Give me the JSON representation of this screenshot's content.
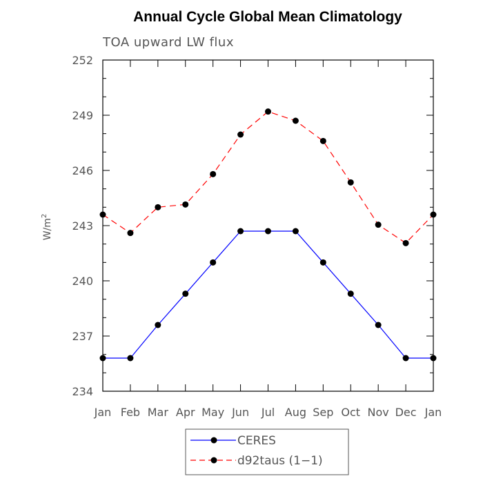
{
  "chart_data": {
    "type": "line",
    "title": "Annual Cycle Global Mean Climatology",
    "subtitle": "TOA upward LW flux",
    "ylabel_base": "W/m",
    "ylabel_sup": "2",
    "xlabel": "",
    "categories": [
      "Jan",
      "Feb",
      "Mar",
      "Apr",
      "May",
      "Jun",
      "Jul",
      "Aug",
      "Sep",
      "Oct",
      "Nov",
      "Dec",
      "Jan"
    ],
    "ylim": [
      234,
      252
    ],
    "yticks": [
      "234",
      "237",
      "240",
      "243",
      "246",
      "249",
      "252"
    ],
    "series": [
      {
        "name": "CERES",
        "color": "#0000ff",
        "dash": "solid",
        "values": [
          235.8,
          235.8,
          237.6,
          239.3,
          241.0,
          242.7,
          242.7,
          242.7,
          241.0,
          239.3,
          237.6,
          235.8,
          235.8
        ]
      },
      {
        "name": "d92taus (1-1)",
        "color": "#ff0000",
        "dash": "dashed",
        "values": [
          243.6,
          242.6,
          244.0,
          244.15,
          245.8,
          247.95,
          249.2,
          248.7,
          247.6,
          245.35,
          243.05,
          242.05,
          243.6
        ]
      }
    ],
    "legend": {
      "placement": "bottom-center",
      "labels": [
        "CERES",
        "d92taus (1−1)"
      ]
    }
  }
}
